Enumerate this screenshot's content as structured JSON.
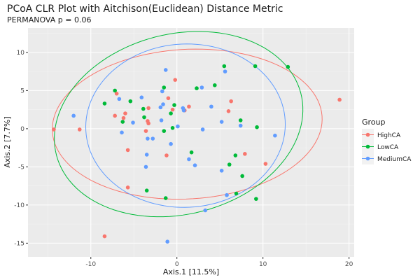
{
  "chart_data": {
    "type": "scatter",
    "title": "PCoA CLR Plot with Aitchison(Euclidean) Distance Metric",
    "subtitle": "PERMANOVA p = 0.06",
    "xlabel": "Axis.1   [11.5%]",
    "ylabel": "Axis.2   [7.7%]",
    "xlim": [
      -17.3,
      20.6
    ],
    "ylim": [
      -16.8,
      13.2
    ],
    "x_ticks": [
      -10,
      0,
      10,
      20
    ],
    "y_ticks": [
      -15,
      -10,
      -5,
      0,
      5,
      10
    ],
    "grid": true,
    "legend_position": "right",
    "legend_title": "Group",
    "series": [
      {
        "name": "HighCA",
        "color": "#F8766D",
        "points": [
          [
            -7.0,
            4.6
          ],
          [
            -7.2,
            1.7
          ],
          [
            -6.0,
            2.0
          ],
          [
            -6.2,
            1.4
          ],
          [
            -5.7,
            -2.8
          ],
          [
            -5.7,
            -7.7
          ],
          [
            -3.6,
            -0.3
          ],
          [
            -3.4,
            1.0
          ],
          [
            -3.3,
            2.7
          ],
          [
            -3.3,
            0.7
          ],
          [
            -1.2,
            -3.5
          ],
          [
            -1.0,
            4.0
          ],
          [
            -0.5,
            2.5
          ],
          [
            -0.2,
            6.4
          ],
          [
            0.9,
            2.4
          ],
          [
            1.4,
            2.9
          ],
          [
            6.0,
            2.3
          ],
          [
            6.3,
            3.6
          ],
          [
            7.9,
            -3.3
          ],
          [
            10.3,
            -4.6
          ],
          [
            -14.3,
            -0.1
          ],
          [
            -11.3,
            -0.1
          ],
          [
            -8.4,
            -14.1
          ],
          [
            18.9,
            3.8
          ]
        ],
        "ellipse": {
          "cx": 1.2,
          "cy": 0.6,
          "rx": 15.7,
          "ry": 9.8,
          "angle_deg": 4
        }
      },
      {
        "name": "LowCA",
        "color": "#00BA38",
        "points": [
          [
            -7.2,
            5.0
          ],
          [
            -8.4,
            3.3
          ],
          [
            -6.3,
            0.9
          ],
          [
            -5.4,
            3.6
          ],
          [
            -3.9,
            2.6
          ],
          [
            -3.8,
            1.5
          ],
          [
            -1.5,
            5.4
          ],
          [
            -1.5,
            -0.3
          ],
          [
            -0.7,
            2.0
          ],
          [
            -0.3,
            3.1
          ],
          [
            -0.5,
            0.1
          ],
          [
            1.7,
            -3.1
          ],
          [
            2.3,
            5.3
          ],
          [
            4.4,
            5.7
          ],
          [
            5.5,
            8.2
          ],
          [
            6.1,
            -4.7
          ],
          [
            6.8,
            -3.5
          ],
          [
            7.4,
            1.1
          ],
          [
            7.6,
            -6.2
          ],
          [
            9.1,
            8.2
          ],
          [
            9.2,
            -9.2
          ],
          [
            9.3,
            0.2
          ],
          [
            12.9,
            8.1
          ],
          [
            6.9,
            -8.5
          ],
          [
            -1.3,
            -9.1
          ],
          [
            -3.5,
            -8.1
          ]
        ],
        "ellipse": {
          "cx": 0.2,
          "cy": 0.6,
          "rx": 14.8,
          "ry": 11.7,
          "angle_deg": 21
        }
      },
      {
        "name": "MediumCA",
        "color": "#619CFF",
        "points": [
          [
            -12.0,
            1.7
          ],
          [
            -6.7,
            3.9
          ],
          [
            -6.4,
            -0.5
          ],
          [
            -5.1,
            0.8
          ],
          [
            -4.1,
            4.1
          ],
          [
            -3.4,
            -1.3
          ],
          [
            -2.8,
            -1.3
          ],
          [
            -1.8,
            1.1
          ],
          [
            -1.7,
            4.9
          ],
          [
            -1.6,
            3.2
          ],
          [
            -1.3,
            7.7
          ],
          [
            -1.9,
            2.8
          ],
          [
            -0.7,
            -2.0
          ],
          [
            0.7,
            2.7
          ],
          [
            0.8,
            2.4
          ],
          [
            0.1,
            0.3
          ],
          [
            1.4,
            -4.0
          ],
          [
            2.1,
            -4.8
          ],
          [
            2.9,
            5.4
          ],
          [
            3.0,
            -0.1
          ],
          [
            4.0,
            2.9
          ],
          [
            5.2,
            0.9
          ],
          [
            5.6,
            7.5
          ],
          [
            7.4,
            0.4
          ],
          [
            11.4,
            -0.9
          ],
          [
            3.3,
            -10.7
          ],
          [
            -3.5,
            -3.4
          ],
          [
            -3.6,
            -5.0
          ],
          [
            5.2,
            -5.5
          ],
          [
            5.8,
            -8.7
          ],
          [
            -1.1,
            -14.8
          ]
        ],
        "ellipse": {
          "cx": 1.0,
          "cy": 0.4,
          "rx": 11.6,
          "ry": 10.7,
          "angle_deg": 6
        }
      }
    ]
  }
}
